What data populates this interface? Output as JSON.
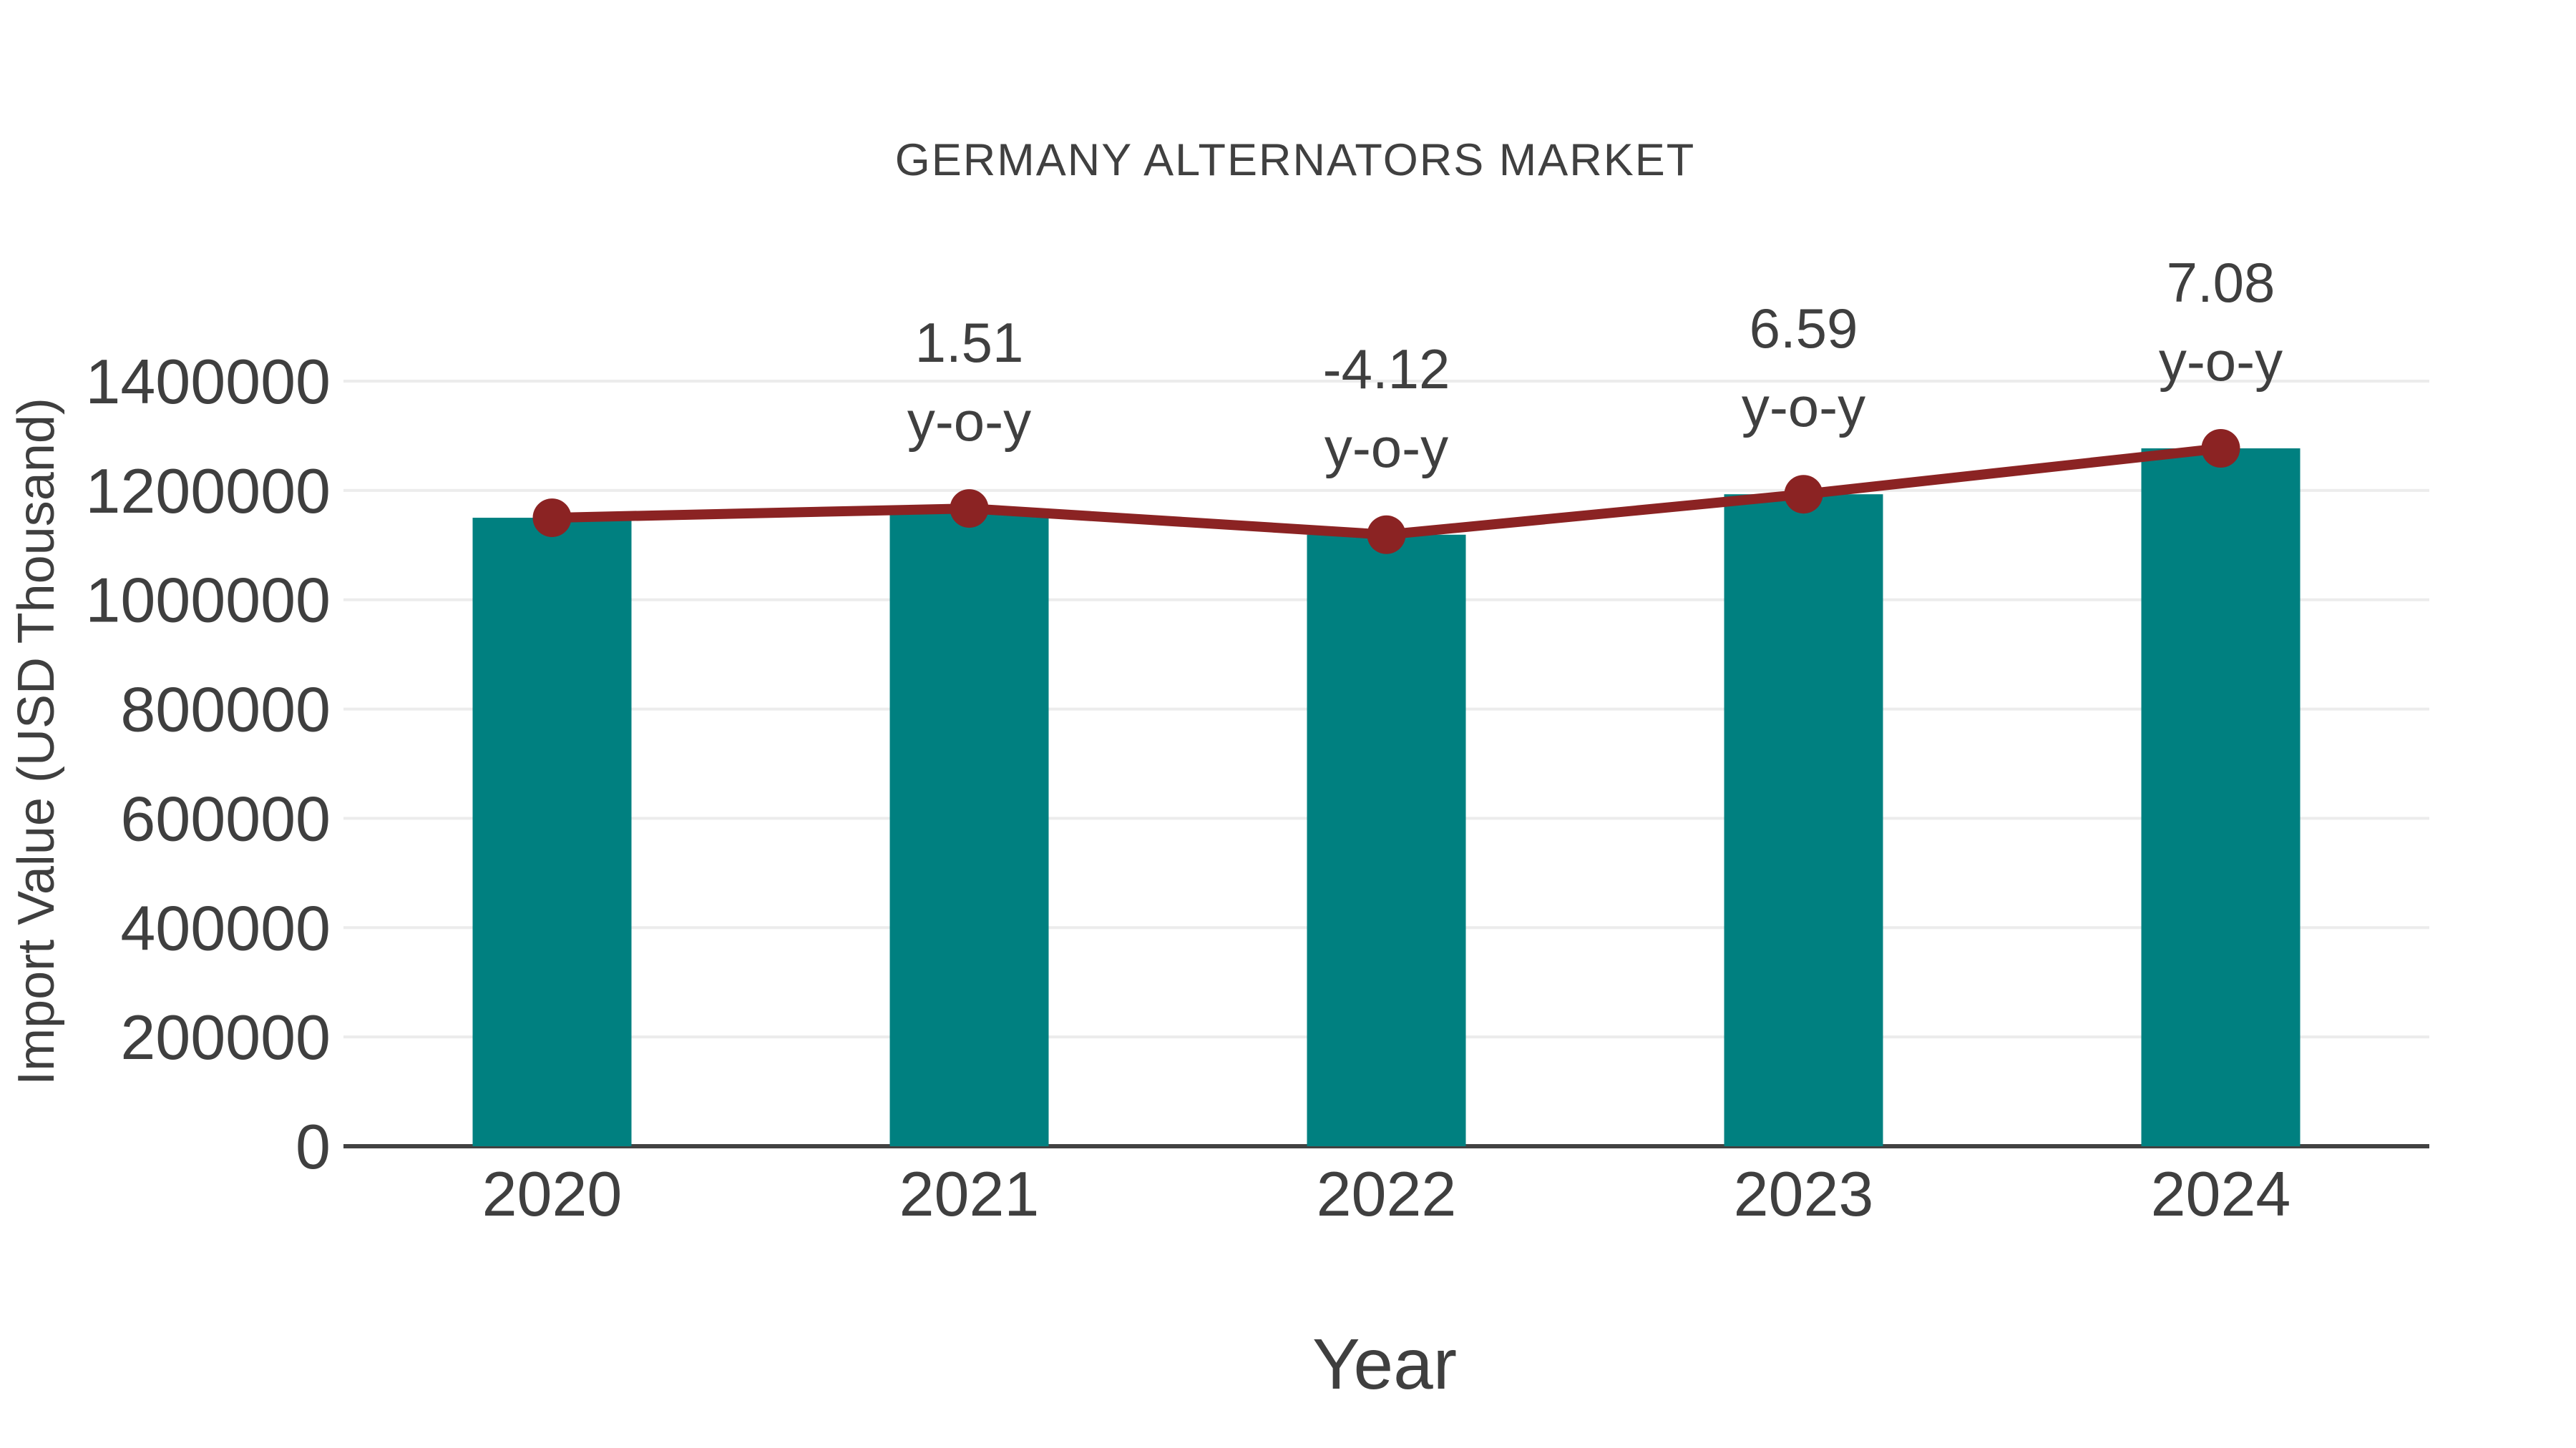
{
  "page": {
    "background": "#ffffff"
  },
  "style": {
    "bar_color": "#008080",
    "line_color": "#8b2323",
    "text_color": "#3f3f3f",
    "title_color": "#404040",
    "grid_color": "#ececec",
    "axis_color": "#424242"
  },
  "chart_data": {
    "type": "bar",
    "title": "GERMANY ALTERNATORS MARKET",
    "xlabel": "Year",
    "ylabel": "Import Value (USD Thousand)",
    "categories": [
      "2020",
      "2021",
      "2022",
      "2023",
      "2024"
    ],
    "series": [
      {
        "name": "import-value-bars",
        "type": "bar",
        "color": "#008080",
        "values": [
          1150000,
          1167000,
          1119000,
          1193000,
          1277000
        ]
      },
      {
        "name": "import-value-trend-line",
        "type": "line",
        "color": "#8b2323",
        "values": [
          1150000,
          1167000,
          1119000,
          1193000,
          1277000
        ]
      }
    ],
    "annotations": [
      {
        "category": "2021",
        "line1": "1.51",
        "line2": "y-o-y"
      },
      {
        "category": "2022",
        "line1": "-4.12",
        "line2": "y-o-y"
      },
      {
        "category": "2023",
        "line1": "6.59",
        "line2": "y-o-y"
      },
      {
        "category": "2024",
        "line1": "7.08",
        "line2": "y-o-y"
      }
    ],
    "ylim": [
      0,
      1400000
    ],
    "ytick_step": 200000,
    "yticks": [
      "0",
      "200000",
      "400000",
      "600000",
      "800000",
      "1000000",
      "1200000",
      "1400000"
    ],
    "grid": true,
    "legend_position": "none"
  }
}
